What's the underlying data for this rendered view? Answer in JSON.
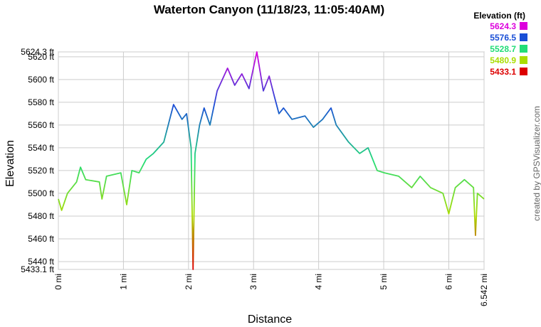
{
  "chart_data": {
    "type": "line",
    "title": "Waterton Canyon (11/18/23, 11:05:40AM)",
    "x_label": "Distance",
    "y_label": "Elevation",
    "credit": "created by GPSVisualizer.com",
    "legend_title": "Elevation (ft)",
    "colorscale": {
      "values": [
        5624.3,
        5576.5,
        5528.7,
        5480.9,
        5433.1
      ],
      "colors": [
        "#dd00dd",
        "#1a4fd6",
        "#22dd77",
        "#aadd00",
        "#dd0000"
      ]
    },
    "grid": true,
    "xlim": [
      0,
      6.542
    ],
    "ylim": [
      5433.1,
      5624.3
    ],
    "xticks": [
      {
        "value": 0,
        "label": "0 mi"
      },
      {
        "value": 1,
        "label": "1 mi"
      },
      {
        "value": 2,
        "label": "2 mi"
      },
      {
        "value": 3,
        "label": "3 mi"
      },
      {
        "value": 4,
        "label": "4 mi"
      },
      {
        "value": 5,
        "label": "5 mi"
      },
      {
        "value": 6,
        "label": "6 mi"
      },
      {
        "value": 6.542,
        "label": "6.542 mi"
      }
    ],
    "yticks": [
      {
        "value": 5433.1,
        "label": "5433.1 ft"
      },
      {
        "value": 5440,
        "label": "5440 ft"
      },
      {
        "value": 5460,
        "label": "5460 ft"
      },
      {
        "value": 5480,
        "label": "5480 ft"
      },
      {
        "value": 5500,
        "label": "5500 ft"
      },
      {
        "value": 5520,
        "label": "5520 ft"
      },
      {
        "value": 5540,
        "label": "5540 ft"
      },
      {
        "value": 5560,
        "label": "5560 ft"
      },
      {
        "value": 5580,
        "label": "5580 ft"
      },
      {
        "value": 5600,
        "label": "5600 ft"
      },
      {
        "value": 5620,
        "label": "5620 ft"
      },
      {
        "value": 5624.3,
        "label": "5624.3 ft"
      }
    ],
    "x": [
      0,
      0.05,
      0.14,
      0.28,
      0.34,
      0.42,
      0.63,
      0.67,
      0.74,
      0.96,
      1.05,
      1.13,
      1.24,
      1.35,
      1.46,
      1.62,
      1.77,
      1.9,
      1.97,
      2.04,
      2.07,
      2.1,
      2.17,
      2.24,
      2.33,
      2.44,
      2.6,
      2.71,
      2.82,
      2.93,
      3.05,
      3.15,
      3.24,
      3.32,
      3.39,
      3.46,
      3.59,
      3.79,
      3.92,
      4.06,
      4.19,
      4.27,
      4.46,
      4.63,
      4.76,
      4.9,
      5.01,
      5.23,
      5.43,
      5.56,
      5.72,
      5.91,
      6.0,
      6.1,
      6.24,
      6.38,
      6.41,
      6.44,
      6.542
    ],
    "values": [
      5495,
      5485,
      5500,
      5510,
      5523,
      5512,
      5510,
      5495,
      5515,
      5518,
      5490,
      5520,
      5518,
      5530,
      5535,
      5545,
      5578,
      5565,
      5570,
      5540,
      5433.1,
      5535,
      5560,
      5575,
      5560,
      5590,
      5610,
      5595,
      5605,
      5592,
      5624.3,
      5590,
      5603,
      5585,
      5570,
      5575,
      5565,
      5568,
      5558,
      5565,
      5575,
      5560,
      5545,
      5535,
      5540,
      5520,
      5518,
      5515,
      5505,
      5515,
      5505,
      5500,
      5482,
      5505,
      5512,
      5505,
      5463,
      5500,
      5495
    ]
  }
}
